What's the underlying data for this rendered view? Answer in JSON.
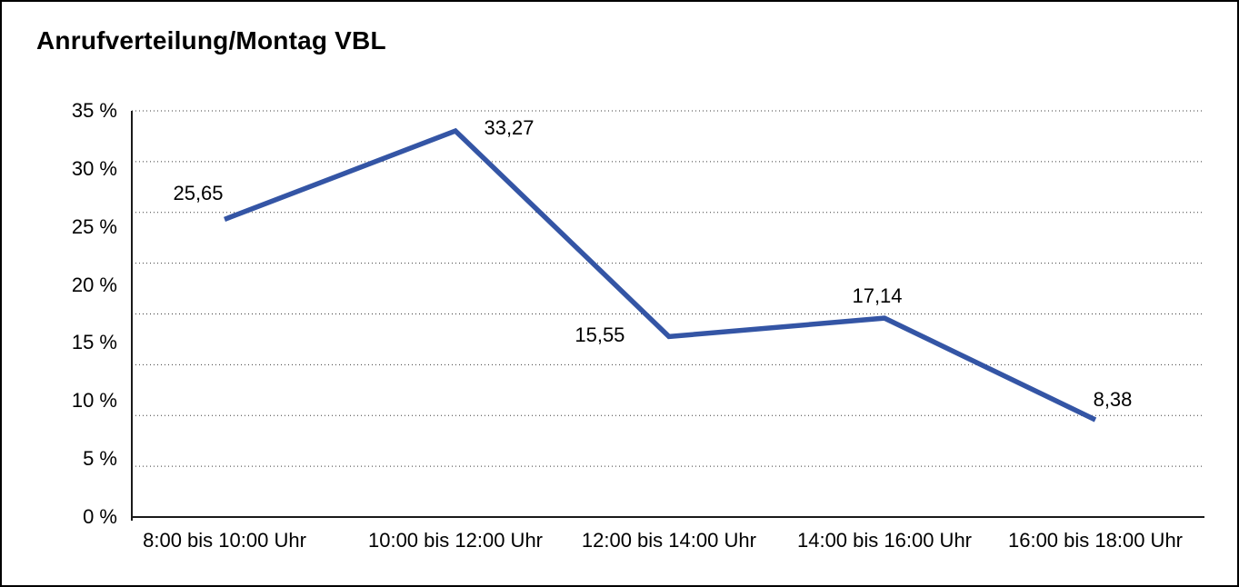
{
  "chart": {
    "title": "Anrufverteilung/Montag VBL"
  },
  "chart_data": {
    "type": "line",
    "title": "Anrufverteilung/Montag VBL",
    "categories": [
      "8:00 bis 10:00 Uhr",
      "10:00 bis 12:00 Uhr",
      "12:00 bis 14:00 Uhr",
      "14:00 bis 16:00 Uhr",
      "16:00 bis 18:00 Uhr"
    ],
    "values": [
      25.65,
      33.27,
      15.55,
      17.14,
      8.38
    ],
    "value_labels": [
      "25,65",
      "33,27",
      "15,55",
      "17,14",
      "8,38"
    ],
    "y_tick_labels": [
      "0 %",
      "5 %",
      "10 %",
      "15 %",
      "20 %",
      "25 %",
      "30 %",
      "35 %"
    ],
    "ylim": [
      0,
      35
    ],
    "xlabel": "",
    "ylabel": "",
    "legend": "none",
    "grid": "horizontal-dotted",
    "gridline_count": 9,
    "line_color": "#3455A5",
    "axis_color": "#1a1a1a",
    "text_color": "#000000"
  }
}
